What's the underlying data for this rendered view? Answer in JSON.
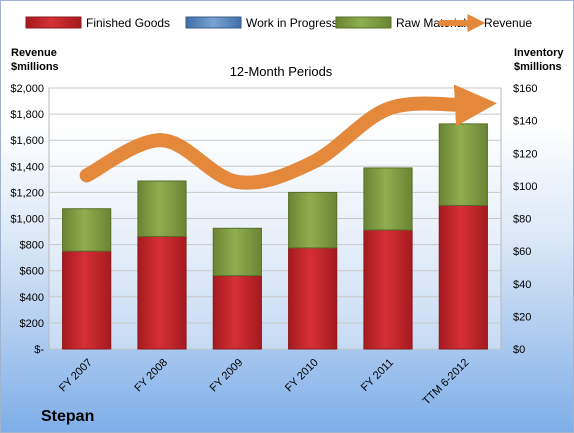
{
  "chart_data": {
    "type": "bar",
    "title": "12-Month Periods",
    "company": "Stepan",
    "categories": [
      "FY 2007",
      "FY 2008",
      "FY 2009",
      "FY 2010",
      "FY 2011",
      "TTM 6-2012"
    ],
    "left_axis_label": [
      "Revenue",
      "$millions"
    ],
    "right_axis_label": [
      "Inventory",
      "$millions"
    ],
    "left_ylim": [
      0,
      2000
    ],
    "right_ylim": [
      0,
      160
    ],
    "left_ticks": [
      "$-",
      "$200",
      "$400",
      "$600",
      "$800",
      "$1,000",
      "$1,200",
      "$1,400",
      "$1,600",
      "$1,800",
      "$2,000"
    ],
    "right_ticks": [
      "$0",
      "$20",
      "$40",
      "$60",
      "$80",
      "$100",
      "$120",
      "$140",
      "$160"
    ],
    "legend_position": "top",
    "grid": true,
    "series": [
      {
        "name": "Finished Goods",
        "axis": "right",
        "color": "#c0262a",
        "values": [
          60,
          69,
          45,
          62,
          73,
          88
        ]
      },
      {
        "name": "Work in Progress",
        "axis": "right",
        "color": "#4f81bd",
        "values": [
          0,
          0,
          0,
          0,
          0,
          0
        ]
      },
      {
        "name": "Raw Materials",
        "axis": "right",
        "color": "#77933c",
        "values": [
          26,
          34,
          29,
          34,
          38,
          50
        ]
      },
      {
        "name": "Revenue",
        "axis": "left",
        "type": "line",
        "color": "#e4893b",
        "values": [
          1330,
          1600,
          1280,
          1430,
          1840,
          1870
        ]
      }
    ]
  }
}
